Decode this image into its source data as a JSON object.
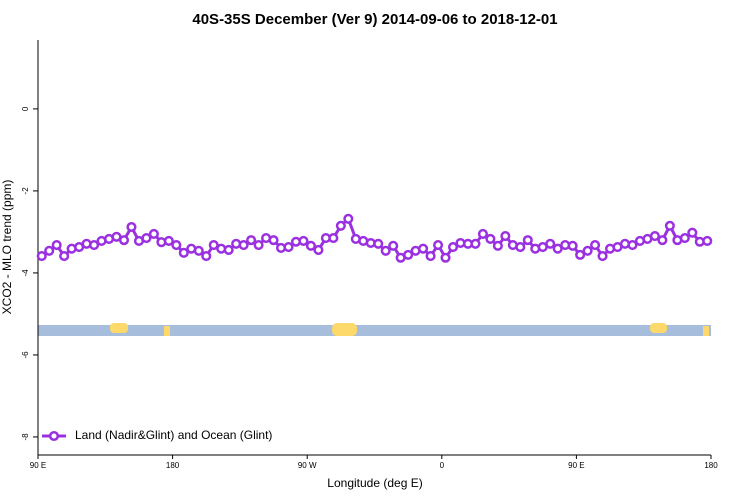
{
  "chart_data": {
    "type": "line",
    "title": "40S-35S December (Ver 9)   2014-09-06 to 2018-12-01",
    "x_label": "Longitude (deg E)",
    "y_label": "XCO2 - MLO trend (ppm)",
    "x": [
      92.5,
      97.5,
      102.5,
      107.5,
      112.5,
      117.5,
      122.5,
      127.5,
      132.5,
      137.5,
      142.5,
      147.5,
      152.5,
      157.5,
      162.5,
      167.5,
      172.5,
      177.5,
      182.5,
      187.5,
      192.5,
      197.5,
      202.5,
      207.5,
      212.5,
      217.5,
      222.5,
      227.5,
      232.5,
      237.5,
      242.5,
      247.5,
      252.5,
      257.5,
      262.5,
      267.5,
      272.5,
      277.5,
      282.5,
      287.5,
      292.5,
      297.5,
      302.5,
      307.5,
      312.5,
      317.5,
      322.5,
      327.5,
      332.5,
      337.5,
      342.5,
      347.5,
      352.5,
      357.5,
      362.5,
      367.5,
      372.5,
      377.5,
      382.5,
      387.5,
      392.5,
      397.5,
      402.5,
      407.5,
      412.5,
      417.5,
      422.5,
      427.5,
      432.5,
      437.5,
      442.5,
      447.5,
      452.5,
      457.5,
      462.5,
      467.5,
      472.5,
      477.5,
      482.5,
      487.5,
      492.5,
      497.5,
      502.5,
      507.5,
      512.5,
      517.5,
      522.5,
      527.5,
      532.5,
      537.5
    ],
    "series": [
      {
        "name": "Land (Nadir&Glint) and Ocean (Glint)",
        "color": "#9b30e0",
        "values": [
          -3.59,
          -3.46,
          -3.32,
          -3.59,
          -3.41,
          -3.37,
          -3.29,
          -3.32,
          -3.22,
          -3.17,
          -3.12,
          -3.2,
          -2.88,
          -3.22,
          -3.15,
          -3.05,
          -3.25,
          -3.22,
          -3.32,
          -3.51,
          -3.41,
          -3.46,
          -3.59,
          -3.32,
          -3.41,
          -3.44,
          -3.29,
          -3.32,
          -3.2,
          -3.32,
          -3.15,
          -3.2,
          -3.39,
          -3.37,
          -3.24,
          -3.22,
          -3.34,
          -3.44,
          -3.15,
          -3.15,
          -2.85,
          -2.68,
          -3.17,
          -3.22,
          -3.27,
          -3.29,
          -3.46,
          -3.34,
          -3.63,
          -3.56,
          -3.46,
          -3.41,
          -3.59,
          -3.32,
          -3.63,
          -3.37,
          -3.27,
          -3.29,
          -3.29,
          -3.05,
          -3.17,
          -3.34,
          -3.1,
          -3.32,
          -3.37,
          -3.2,
          -3.41,
          -3.37,
          -3.29,
          -3.41,
          -3.32,
          -3.34,
          -3.56,
          -3.46,
          -3.32,
          -3.59,
          -3.41,
          -3.37,
          -3.29,
          -3.32,
          -3.22,
          -3.17,
          -3.1,
          -3.2,
          -2.85,
          -3.2,
          -3.15,
          -3.02,
          -3.24,
          -3.22
        ]
      }
    ],
    "xlim": [
      90,
      540
    ],
    "xticks": [
      {
        "value": 90,
        "label": "90 E"
      },
      {
        "value": 180,
        "label": "180"
      },
      {
        "value": 270,
        "label": "90 W"
      },
      {
        "value": 360,
        "label": "0"
      },
      {
        "value": 450,
        "label": "90 E"
      },
      {
        "value": 540,
        "label": "180"
      }
    ],
    "ylim": [
      -8.44,
      1.68
    ],
    "yticks": [
      0,
      -2,
      -4,
      -6,
      -8
    ],
    "legend": "bottom-left"
  }
}
